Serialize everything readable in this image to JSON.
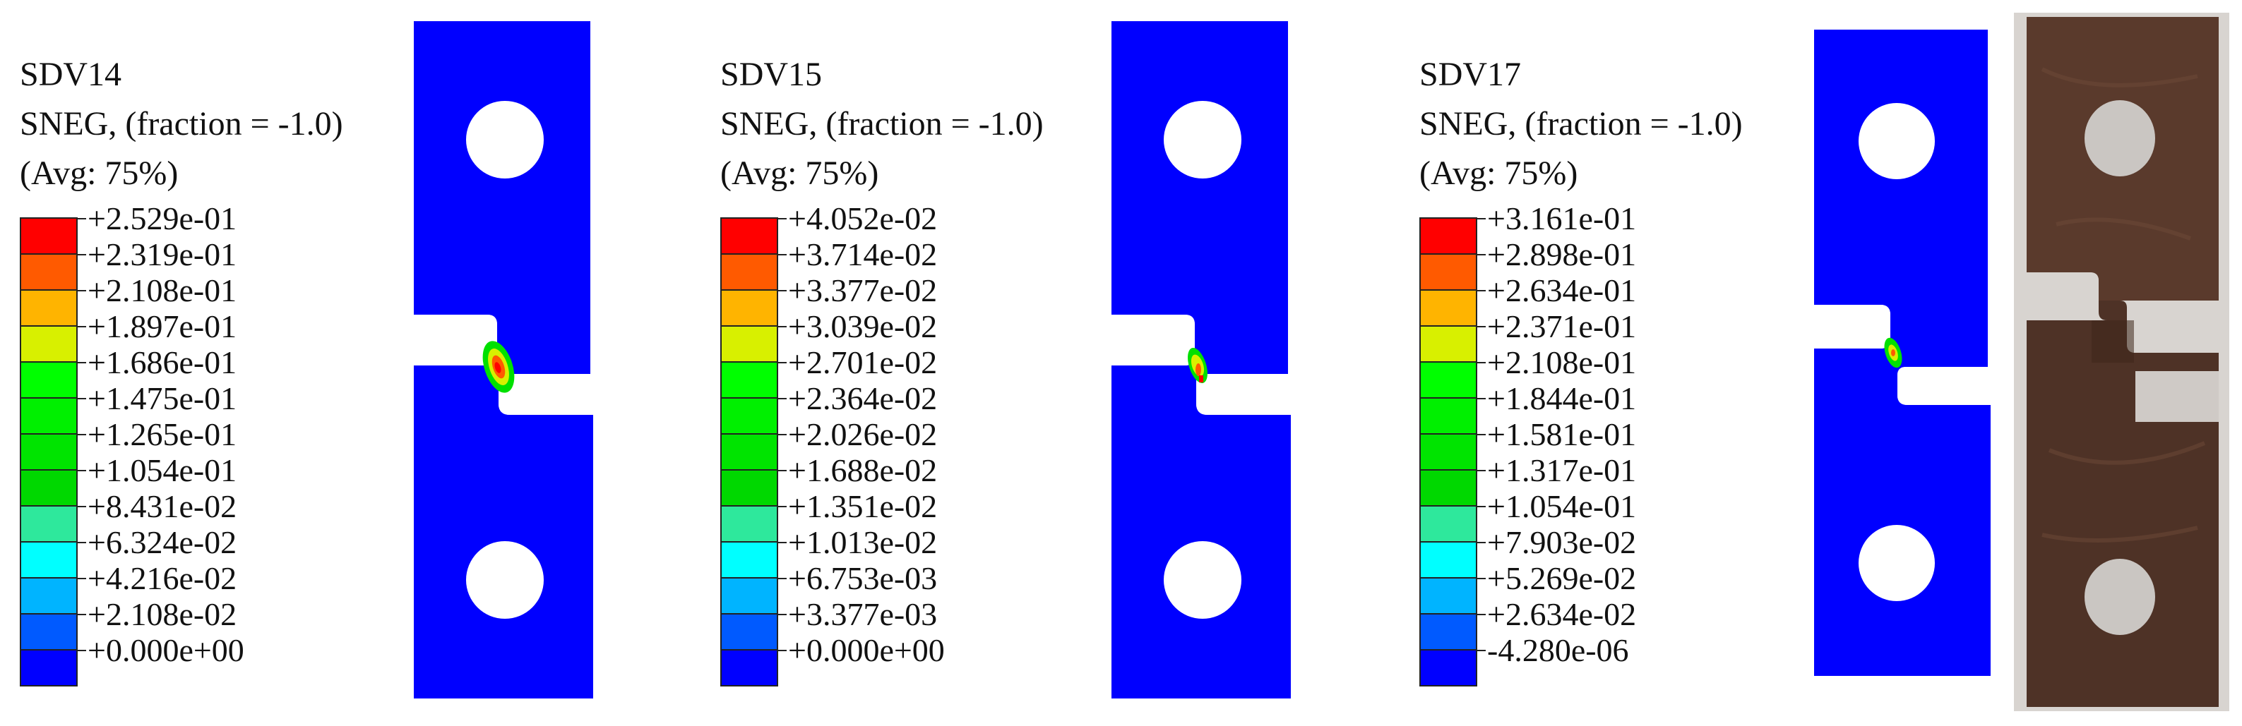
{
  "panels": [
    {
      "variable": "SDV14",
      "subtitle": "SNEG, (fraction = -1.0)",
      "averaging": "(Avg: 75%)",
      "legend_values": [
        "+2.529e-01",
        "+2.319e-01",
        "+2.108e-01",
        "+1.897e-01",
        "+1.686e-01",
        "+1.475e-01",
        "+1.265e-01",
        "+1.054e-01",
        "+8.431e-02",
        "+6.324e-02",
        "+4.216e-02",
        "+2.108e-02",
        "+0.000e+00"
      ]
    },
    {
      "variable": "SDV15",
      "subtitle": "SNEG, (fraction = -1.0)",
      "averaging": "(Avg: 75%)",
      "legend_values": [
        "+4.052e-02",
        "+3.714e-02",
        "+3.377e-02",
        "+3.039e-02",
        "+2.701e-02",
        "+2.364e-02",
        "+2.026e-02",
        "+1.688e-02",
        "+1.351e-02",
        "+1.013e-02",
        "+6.753e-03",
        "+3.377e-03",
        "+0.000e+00"
      ]
    },
    {
      "variable": "SDV17",
      "subtitle": "SNEG, (fraction = -1.0)",
      "averaging": "(Avg: 75%)",
      "legend_values": [
        "+3.161e-01",
        "+2.898e-01",
        "+2.634e-01",
        "+2.371e-01",
        "+2.108e-01",
        "+1.844e-01",
        "+1.581e-01",
        "+1.317e-01",
        "+1.054e-01",
        "+7.903e-02",
        "+5.269e-02",
        "+2.634e-02",
        "-4.280e-06"
      ]
    }
  ],
  "colors": {
    "contour_bands_top_to_bottom": [
      "#ff0000",
      "#ff5a00",
      "#ffb400",
      "#d8f000",
      "#00ff00",
      "#00f000",
      "#00e400",
      "#00d800",
      "#2ee89c",
      "#00ffff",
      "#00b4ff",
      "#005aff",
      "#0000ff"
    ],
    "specimen_blue": "#0000ff",
    "hole_white": "#ffffff",
    "photo_metal": "#5a3a2c",
    "photo_background": "#d8d4d0"
  }
}
